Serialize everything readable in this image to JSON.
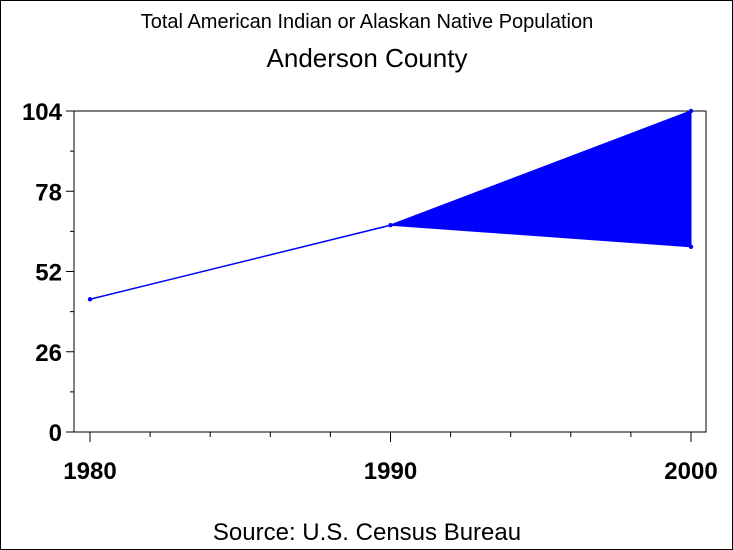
{
  "chart_data": {
    "type": "line",
    "title": "Anderson County",
    "subtitle": "Total American Indian or Alaskan Native Population",
    "source": "Source: U.S. Census Bureau",
    "xlabel": "",
    "ylabel": "",
    "x": [
      1980,
      1990,
      2000
    ],
    "series": [
      {
        "values": [
          43,
          67,
          104
        ]
      }
    ],
    "band": {
      "x": [
        1990,
        2000
      ],
      "lower": [
        67,
        60
      ],
      "upper": [
        67,
        104
      ]
    },
    "xlim": [
      1980,
      2000
    ],
    "ylim": [
      0,
      104
    ],
    "y_ticks": [
      0,
      26,
      52,
      78,
      104
    ],
    "x_ticks": [
      1980,
      1990,
      2000
    ],
    "grid": false,
    "colors": {
      "series": "#0000ff",
      "axis": "#000000"
    }
  }
}
